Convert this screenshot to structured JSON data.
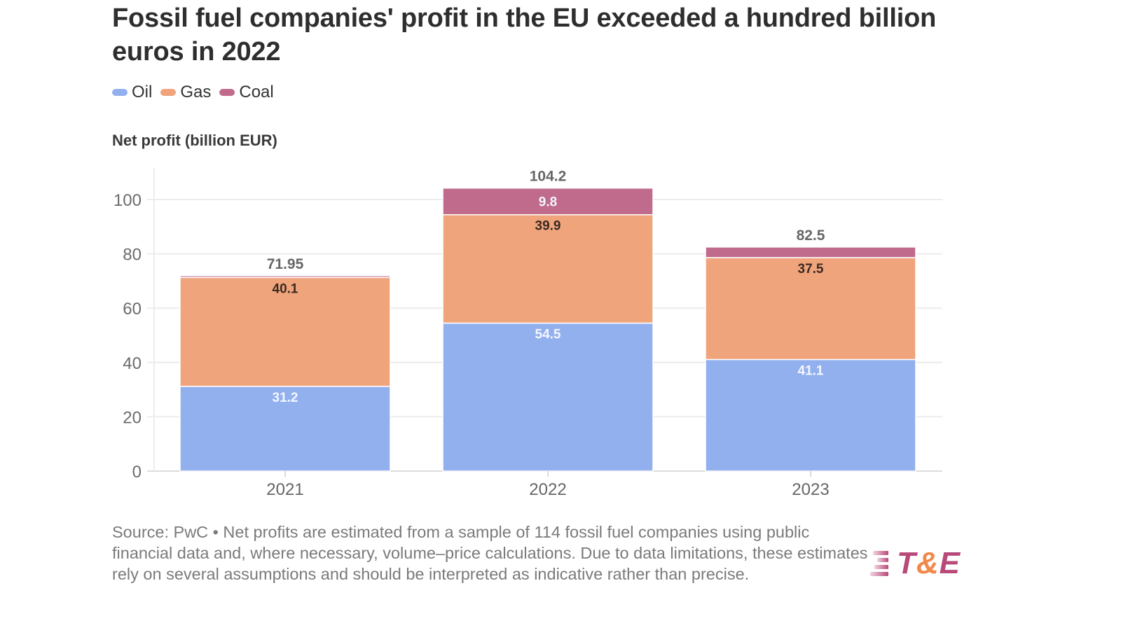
{
  "title": "Fossil fuel companies' profit in the EU exceeded a hundred billion euros in 2022",
  "legend": [
    {
      "label": "Oil",
      "color": "#93b0ee"
    },
    {
      "label": "Gas",
      "color": "#f0a47c"
    },
    {
      "label": "Coal",
      "color": "#c06a8c"
    }
  ],
  "notes": "Source: PwC • Net profits are estimated from a sample of 114 fossil fuel companies using public financial data and, where necessary, volume–price calculations. Due to data limitations, these estimates rely on several assumptions and should be interpreted as indicative rather than precise.",
  "logo": {
    "part1": "T",
    "part2": "&",
    "part3": "E",
    "color_main": "#b84a7a",
    "color_accent": "#f08a4b"
  },
  "chart_data": {
    "type": "bar",
    "stacked": true,
    "title": "Fossil fuel companies' profit in the EU exceeded a hundred billion euros in 2022",
    "xlabel": "",
    "ylabel": "Net profit (billion EUR)",
    "categories": [
      "2021",
      "2022",
      "2023"
    ],
    "series": [
      {
        "name": "Oil",
        "color": "#93b0ee",
        "values": [
          31.2,
          54.5,
          41.1
        ],
        "labels": [
          "31.2",
          "54.5",
          "41.1"
        ]
      },
      {
        "name": "Gas",
        "color": "#f0a47c",
        "values": [
          40.1,
          39.9,
          37.5
        ],
        "labels": [
          "40.1",
          "39.9",
          "37.5"
        ]
      },
      {
        "name": "Coal",
        "color": "#c06a8c",
        "values": [
          0.65,
          9.8,
          3.9
        ],
        "labels": [
          "",
          "9.8",
          ""
        ]
      }
    ],
    "totals": [
      "71.95",
      "104.2",
      "82.5"
    ],
    "ylim": [
      0,
      100
    ],
    "yticks": [
      0,
      20,
      40,
      60,
      80,
      100
    ],
    "grid": true,
    "legend_position": "top-left"
  }
}
